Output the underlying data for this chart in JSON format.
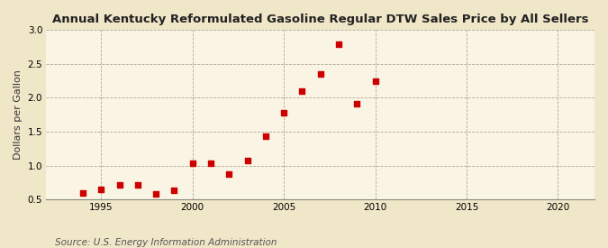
{
  "title": "Annual Kentucky Reformulated Gasoline Regular DTW Sales Price by All Sellers",
  "ylabel": "Dollars per Gallon",
  "source": "Source: U.S. Energy Information Administration",
  "outer_bg": "#f0e6c8",
  "inner_bg": "#faf4e4",
  "years": [
    1994,
    1995,
    1996,
    1997,
    1998,
    1999,
    2000,
    2001,
    2002,
    2003,
    2004,
    2005,
    2006,
    2007,
    2008,
    2009,
    2010
  ],
  "values": [
    0.6,
    0.65,
    0.72,
    0.72,
    0.58,
    0.63,
    1.04,
    1.03,
    0.88,
    1.07,
    1.43,
    1.78,
    2.1,
    2.35,
    2.79,
    1.91,
    2.24
  ],
  "marker_color": "#cc0000",
  "xlim": [
    1992,
    2022
  ],
  "ylim": [
    0.5,
    3.0
  ],
  "xticks": [
    1995,
    2000,
    2005,
    2010,
    2015,
    2020
  ],
  "yticks": [
    0.5,
    1.0,
    1.5,
    2.0,
    2.5,
    3.0
  ],
  "title_fontsize": 9.5,
  "ylabel_fontsize": 8,
  "source_fontsize": 7.5
}
